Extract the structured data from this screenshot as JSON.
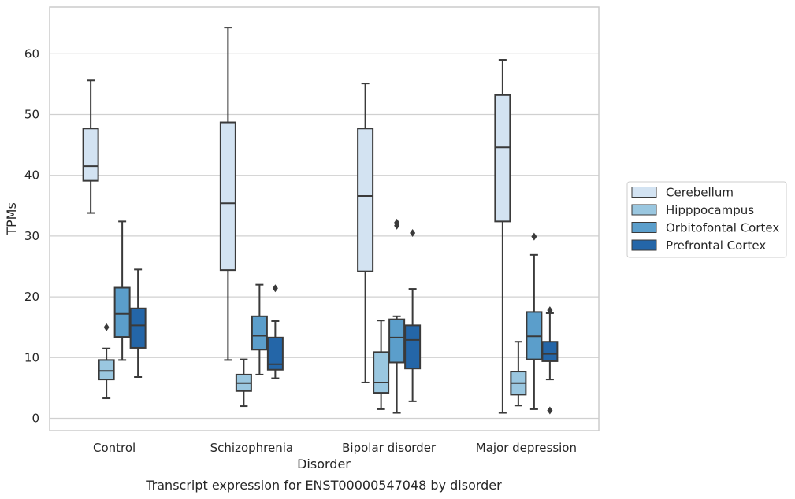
{
  "chart_data": {
    "type": "box",
    "title": "",
    "caption": "Transcript expression for ENST00000547048 by disorder",
    "xlabel": "Disorder",
    "ylabel": "TPMs",
    "ylim": [
      -2,
      67
    ],
    "yticks": [
      0,
      10,
      20,
      30,
      40,
      50,
      60
    ],
    "grid": "horizontal",
    "legend_position": "right",
    "categories": [
      "Control",
      "Schizophrenia",
      "Bipolar disorder",
      "Major depression"
    ],
    "series": [
      {
        "name": "Cerebellum",
        "color": "#d3e3f2",
        "boxes": [
          {
            "whisker_low": 33.8,
            "q1": 39.1,
            "median": 41.5,
            "q3": 47.7,
            "whisker_high": 55.6,
            "outliers": []
          },
          {
            "whisker_low": 9.6,
            "q1": 24.4,
            "median": 35.4,
            "q3": 48.7,
            "whisker_high": 64.3,
            "outliers": []
          },
          {
            "whisker_low": 5.9,
            "q1": 24.2,
            "median": 36.6,
            "q3": 47.7,
            "whisker_high": 55.1,
            "outliers": []
          },
          {
            "whisker_low": 0.9,
            "q1": 32.4,
            "median": 44.6,
            "q3": 53.2,
            "whisker_high": 59.0,
            "outliers": []
          }
        ]
      },
      {
        "name": "Hipppocampus",
        "color": "#9ac7e0",
        "boxes": [
          {
            "whisker_low": 3.3,
            "q1": 6.4,
            "median": 7.8,
            "q3": 9.6,
            "whisker_high": 11.5,
            "outliers": [
              15.0
            ]
          },
          {
            "whisker_low": 2.0,
            "q1": 4.5,
            "median": 5.8,
            "q3": 7.2,
            "whisker_high": 9.7,
            "outliers": []
          },
          {
            "whisker_low": 1.5,
            "q1": 4.2,
            "median": 5.9,
            "q3": 10.9,
            "whisker_high": 16.1,
            "outliers": []
          },
          {
            "whisker_low": 2.1,
            "q1": 3.9,
            "median": 5.8,
            "q3": 7.7,
            "whisker_high": 12.6,
            "outliers": []
          }
        ]
      },
      {
        "name": "Orbitofontal Cortex",
        "color": "#5b9ecb",
        "boxes": [
          {
            "whisker_low": 9.6,
            "q1": 13.4,
            "median": 17.2,
            "q3": 21.5,
            "whisker_high": 32.4,
            "outliers": []
          },
          {
            "whisker_low": 7.2,
            "q1": 11.3,
            "median": 13.6,
            "q3": 16.8,
            "whisker_high": 22.0,
            "outliers": []
          },
          {
            "whisker_low": 0.9,
            "q1": 9.2,
            "median": 13.3,
            "q3": 16.3,
            "whisker_high": 16.8,
            "outliers": [
              31.7,
              32.2
            ]
          },
          {
            "whisker_low": 1.5,
            "q1": 9.7,
            "median": 13.5,
            "q3": 17.5,
            "whisker_high": 26.9,
            "outliers": [
              29.9
            ]
          }
        ]
      },
      {
        "name": "Prefrontal Cortex",
        "color": "#2466a8",
        "boxes": [
          {
            "whisker_low": 6.8,
            "q1": 11.6,
            "median": 15.3,
            "q3": 18.1,
            "whisker_high": 24.5,
            "outliers": []
          },
          {
            "whisker_low": 6.6,
            "q1": 8.0,
            "median": 8.9,
            "q3": 13.3,
            "whisker_high": 16.0,
            "outliers": [
              21.4
            ]
          },
          {
            "whisker_low": 2.8,
            "q1": 8.2,
            "median": 12.9,
            "q3": 15.3,
            "whisker_high": 21.3,
            "outliers": [
              30.5
            ]
          },
          {
            "whisker_low": 6.4,
            "q1": 9.4,
            "median": 10.6,
            "q3": 12.6,
            "whisker_high": 17.3,
            "outliers": [
              17.8,
              1.3
            ]
          }
        ]
      }
    ]
  }
}
